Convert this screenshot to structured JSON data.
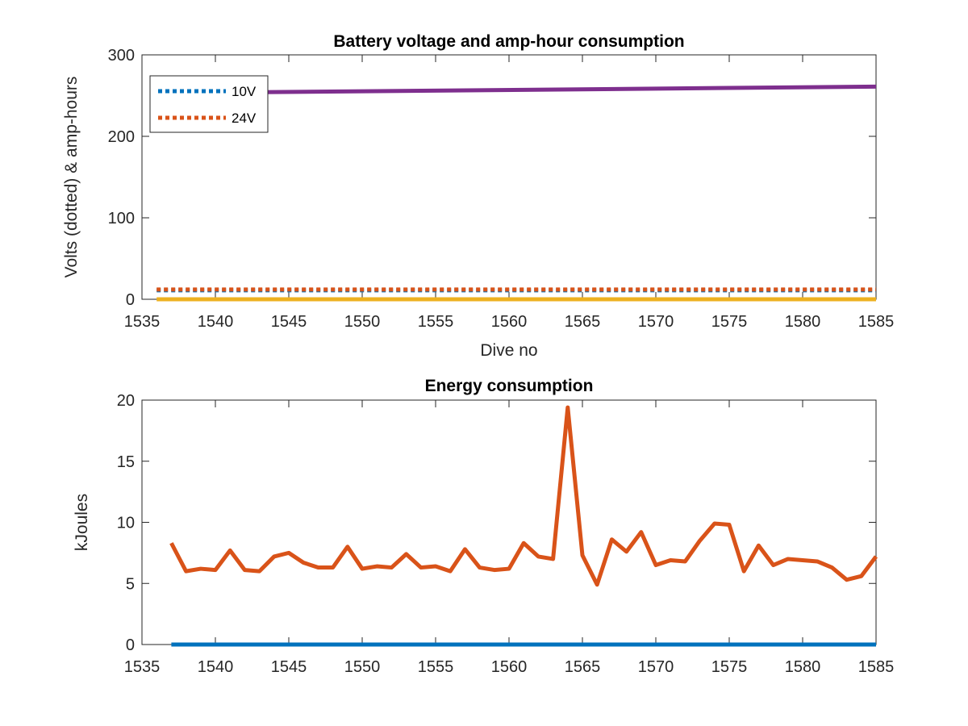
{
  "chart_data": [
    {
      "type": "line",
      "title": "Battery voltage and amp-hour consumption",
      "xlabel": "Dive no",
      "ylabel": "Volts (dotted) & amp-hours",
      "xlim": [
        1535,
        1585
      ],
      "ylim": [
        0,
        300
      ],
      "xticks": [
        1535,
        1540,
        1545,
        1550,
        1555,
        1560,
        1565,
        1570,
        1575,
        1580,
        1585
      ],
      "yticks": [
        0,
        100,
        200,
        300
      ],
      "grid": false,
      "legend_position": "top-left",
      "series": [
        {
          "name": "10V",
          "style": "dotted",
          "color": "#0072BD",
          "x": [
            1536,
            1585
          ],
          "y": [
            11,
            11
          ]
        },
        {
          "name": "24V",
          "style": "dotted",
          "color": "#D95319",
          "x": [
            1536,
            1585
          ],
          "y": [
            12,
            12
          ]
        },
        {
          "style": "solid",
          "color": "#EDB120",
          "x": [
            1536,
            1585
          ],
          "y": [
            0,
            0
          ]
        },
        {
          "style": "solid",
          "color": "#7E2F8E",
          "x": [
            1536,
            1585
          ],
          "y": [
            253,
            261
          ]
        }
      ]
    },
    {
      "type": "line",
      "title": "Energy consumption",
      "xlabel": "",
      "ylabel": "kJoules",
      "xlim": [
        1535,
        1585
      ],
      "ylim": [
        0,
        20
      ],
      "xticks": [
        1535,
        1540,
        1545,
        1550,
        1555,
        1560,
        1565,
        1570,
        1575,
        1580,
        1585
      ],
      "yticks": [
        0,
        5,
        10,
        15,
        20
      ],
      "grid": false,
      "series": [
        {
          "style": "solid",
          "color": "#0072BD",
          "x": [
            1537,
            1585
          ],
          "y": [
            0,
            0
          ]
        },
        {
          "style": "solid",
          "color": "#D95319",
          "x": [
            1537,
            1538,
            1539,
            1540,
            1541,
            1542,
            1543,
            1544,
            1545,
            1546,
            1547,
            1548,
            1549,
            1550,
            1551,
            1552,
            1553,
            1554,
            1555,
            1556,
            1557,
            1558,
            1559,
            1560,
            1561,
            1562,
            1563,
            1564,
            1565,
            1566,
            1567,
            1568,
            1569,
            1570,
            1571,
            1572,
            1573,
            1574,
            1575,
            1576,
            1577,
            1578,
            1579,
            1580,
            1581,
            1582,
            1583,
            1584,
            1585
          ],
          "y": [
            8.3,
            6.0,
            6.2,
            6.1,
            7.7,
            6.1,
            6.0,
            7.2,
            7.5,
            6.7,
            6.3,
            6.3,
            8.0,
            6.2,
            6.4,
            6.3,
            7.4,
            6.3,
            6.4,
            6.0,
            7.8,
            6.3,
            6.1,
            6.2,
            8.3,
            7.2,
            7.0,
            19.4,
            7.3,
            4.9,
            8.6,
            7.6,
            9.2,
            6.5,
            6.9,
            6.8,
            8.5,
            9.9,
            9.8,
            6.0,
            8.1,
            6.5,
            7.0,
            6.9,
            6.8,
            6.3,
            5.3,
            5.6,
            7.2
          ]
        }
      ]
    }
  ]
}
